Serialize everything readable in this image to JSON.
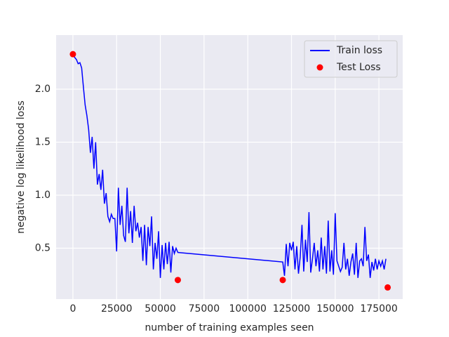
{
  "chart_data": {
    "type": "line",
    "xlabel": "number of training examples seen",
    "ylabel": "negative log likelihood loss",
    "xlim": [
      -9600,
      188600
    ],
    "ylim": [
      0.02,
      2.51
    ],
    "xticks": [
      0,
      25000,
      50000,
      75000,
      100000,
      125000,
      150000,
      175000
    ],
    "yticks": [
      0.5,
      {
        "value": 1.0,
        "label": "1.0"
      },
      1.5,
      {
        "value": 2.0,
        "label": "2.0"
      }
    ],
    "grid": true,
    "legend": "upper right",
    "series": [
      {
        "name": "Train loss",
        "color": "#0000ff",
        "style": "line",
        "x": [
          0,
          1000,
          2000,
          3000,
          4000,
          5000,
          6000,
          7000,
          8000,
          9000,
          10000,
          11000,
          12000,
          13000,
          14000,
          15000,
          16000,
          17000,
          18000,
          19000,
          20000,
          21000,
          22000,
          23000,
          24000,
          25000,
          26000,
          27000,
          28000,
          29000,
          30000,
          31000,
          32000,
          33000,
          34000,
          35000,
          36000,
          37000,
          38000,
          39000,
          40000,
          41000,
          42000,
          43000,
          44000,
          45000,
          46000,
          47000,
          48000,
          49000,
          50000,
          51000,
          52000,
          53000,
          54000,
          55000,
          56000,
          57000,
          58000,
          59000,
          60000,
          120000,
          121000,
          122000,
          123000,
          124000,
          125000,
          126000,
          127000,
          128000,
          129000,
          130000,
          131000,
          132000,
          133000,
          134000,
          135000,
          136000,
          137000,
          138000,
          139000,
          140000,
          141000,
          142000,
          143000,
          144000,
          145000,
          146000,
          147000,
          148000,
          149000,
          150000,
          151000,
          152000,
          153000,
          154000,
          155000,
          156000,
          157000,
          158000,
          159000,
          160000,
          161000,
          162000,
          163000,
          164000,
          165000,
          166000,
          167000,
          168000,
          169000,
          170000,
          171000,
          172000,
          173000,
          174000,
          175000,
          176000,
          177000,
          178000,
          179000
        ],
        "values": [
          2.33,
          2.3,
          2.28,
          2.24,
          2.25,
          2.2,
          2.02,
          1.85,
          1.75,
          1.62,
          1.4,
          1.55,
          1.25,
          1.5,
          1.1,
          1.2,
          1.05,
          1.24,
          0.92,
          1.02,
          0.8,
          0.75,
          0.82,
          0.78,
          0.78,
          0.47,
          1.07,
          0.72,
          0.9,
          0.62,
          0.56,
          1.07,
          0.64,
          0.85,
          0.55,
          0.9,
          0.66,
          0.74,
          0.6,
          0.7,
          0.38,
          0.72,
          0.34,
          0.7,
          0.52,
          0.8,
          0.3,
          0.55,
          0.4,
          0.66,
          0.22,
          0.53,
          0.3,
          0.55,
          0.35,
          0.56,
          0.27,
          0.52,
          0.45,
          0.5,
          0.46,
          0.37,
          0.24,
          0.54,
          0.33,
          0.55,
          0.48,
          0.56,
          0.3,
          0.52,
          0.26,
          0.42,
          0.72,
          0.28,
          0.58,
          0.37,
          0.84,
          0.27,
          0.4,
          0.55,
          0.33,
          0.48,
          0.28,
          0.6,
          0.3,
          0.52,
          0.26,
          0.76,
          0.28,
          0.48,
          0.25,
          0.83,
          0.38,
          0.33,
          0.28,
          0.32,
          0.55,
          0.3,
          0.4,
          0.24,
          0.37,
          0.45,
          0.25,
          0.55,
          0.22,
          0.38,
          0.4,
          0.33,
          0.7,
          0.38,
          0.44,
          0.22,
          0.37,
          0.29,
          0.4,
          0.3,
          0.38,
          0.33,
          0.38,
          0.3,
          0.4
        ]
      },
      {
        "name": "Test Loss",
        "color": "#ff0000",
        "style": "scatter",
        "x": [
          0,
          60000,
          120000,
          180000
        ],
        "values": [
          2.33,
          0.2,
          0.2,
          0.13
        ]
      }
    ]
  }
}
